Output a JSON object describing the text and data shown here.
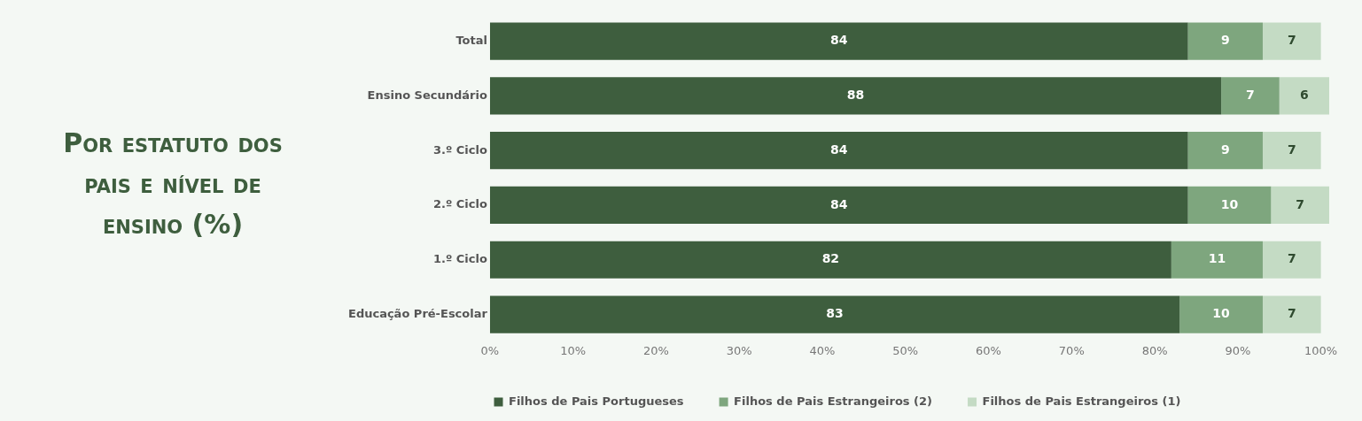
{
  "chart_data": {
    "type": "bar",
    "title": "Por estatuto dos pais e nível de ensino (%)",
    "orientation": "horizontal",
    "stacked": true,
    "categories": [
      "Total",
      "Ensino Secundário",
      "3.º Ciclo",
      "2.º Ciclo",
      "1.º Ciclo",
      "Educação Pré-Escolar"
    ],
    "series": [
      {
        "name": "Filhos de Pais Portugueses",
        "color": "#3e5e3e",
        "values": [
          84,
          88,
          84,
          84,
          82,
          83
        ]
      },
      {
        "name": "Filhos de Pais Estrangeiros (2)",
        "color": "#7ea67e",
        "values": [
          9,
          7,
          9,
          10,
          11,
          10
        ]
      },
      {
        "name": "Filhos de Pais Estrangeiros (1)",
        "color": "#c4dbc4",
        "values": [
          7,
          6,
          7,
          7,
          7,
          7
        ]
      }
    ],
    "xlim": [
      0,
      101
    ],
    "xticks": [
      {
        "value": 0,
        "label": "0%"
      },
      {
        "value": 10,
        "label": "10%"
      },
      {
        "value": 20,
        "label": "20%"
      },
      {
        "value": 30,
        "label": "30%"
      },
      {
        "value": 40,
        "label": "40%"
      },
      {
        "value": 50,
        "label": "50%"
      },
      {
        "value": 60,
        "label": "60%"
      },
      {
        "value": 70,
        "label": "70%"
      },
      {
        "value": 80,
        "label": "80%"
      },
      {
        "value": 90,
        "label": "90%"
      },
      {
        "value": 100,
        "label": "100%"
      }
    ],
    "data_labels": true,
    "grid": false,
    "legend": "bottom"
  }
}
